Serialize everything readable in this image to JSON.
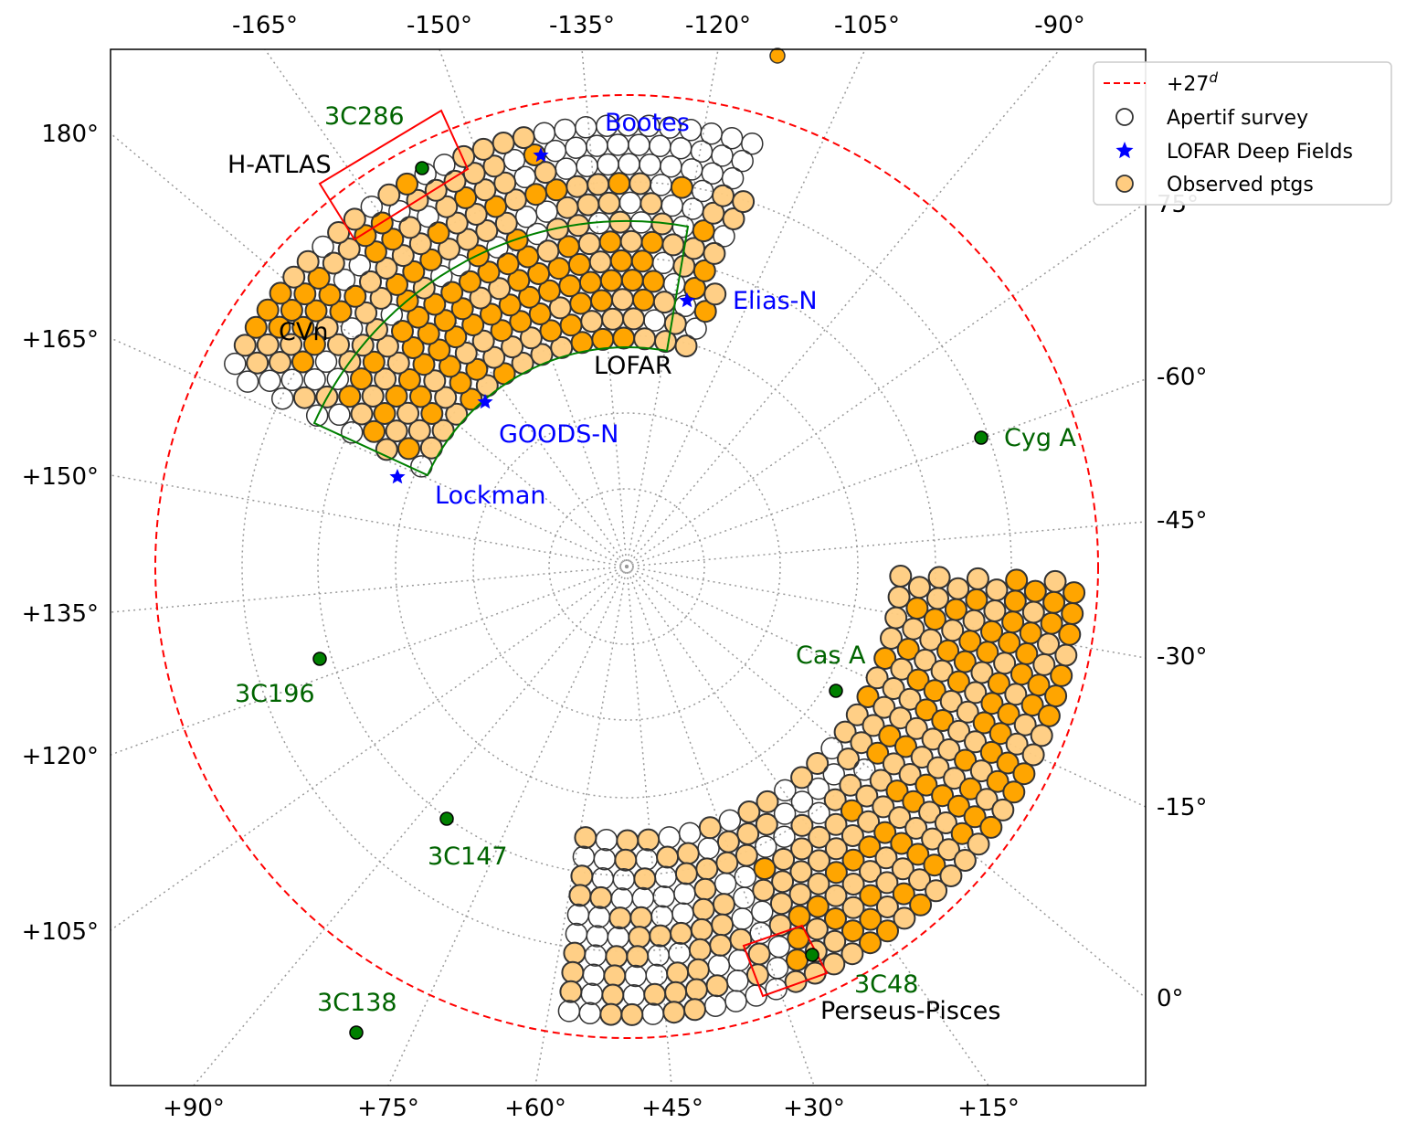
{
  "chart_data": {
    "type": "scatter",
    "projection": "polar (north celestial pole)",
    "title": "",
    "top_ticks": [
      "-165°",
      "-150°",
      "-135°",
      "-120°",
      "-105°",
      "-90°"
    ],
    "bottom_ticks": [
      "+90°",
      "+75°",
      "+60°",
      "+45°",
      "+30°",
      "+15°"
    ],
    "left_ticks": [
      "180°",
      "+165°",
      "+150°",
      "+135°",
      "+120°",
      "+105°"
    ],
    "right_ticks": [
      "-60°",
      "-45°",
      "-30°",
      "-15°",
      "0°"
    ],
    "right_partial_tick": "75°",
    "declination_limit_deg": 27,
    "legend": {
      "position": "top-right",
      "entries": [
        {
          "label_main": "+27",
          "label_sup": "d",
          "marker": "dashed-line",
          "color": "#ff0000"
        },
        {
          "label_main": "Apertif survey",
          "marker": "open-circle",
          "color": "#333333"
        },
        {
          "label_main": "LOFAR Deep Fields",
          "marker": "star",
          "color": "#0000ff"
        },
        {
          "label_main": "Observed ptgs",
          "marker": "filled-circle",
          "color": "#ffa500"
        }
      ]
    },
    "fields": [
      {
        "name": "H-ATLAS",
        "color": "#000000"
      },
      {
        "name": "CVn",
        "color": "#000000"
      },
      {
        "name": "LOFAR",
        "color": "#000000"
      },
      {
        "name": "Perseus-Pisces",
        "color": "#000000"
      }
    ],
    "deep_fields": [
      {
        "name": "Bootes",
        "color": "#0000ff"
      },
      {
        "name": "Elias-N",
        "color": "#0000ff"
      },
      {
        "name": "GOODS-N",
        "color": "#0000ff"
      },
      {
        "name": "Lockman",
        "color": "#0000ff"
      }
    ],
    "calibrators": [
      {
        "name": "3C286",
        "color": "#006400"
      },
      {
        "name": "Cyg A",
        "color": "#006400"
      },
      {
        "name": "Cas A",
        "color": "#006400"
      },
      {
        "name": "3C196",
        "color": "#006400"
      },
      {
        "name": "3C147",
        "color": "#006400"
      },
      {
        "name": "3C138",
        "color": "#006400"
      },
      {
        "name": "3C48",
        "color": "#006400"
      }
    ],
    "colors": {
      "observed_dark": "#ffa500",
      "observed_light": "#ffcc80",
      "survey_edge": "#333333",
      "boundary": "#ff0000",
      "region_box": "#008000",
      "grid": "#999999"
    }
  }
}
